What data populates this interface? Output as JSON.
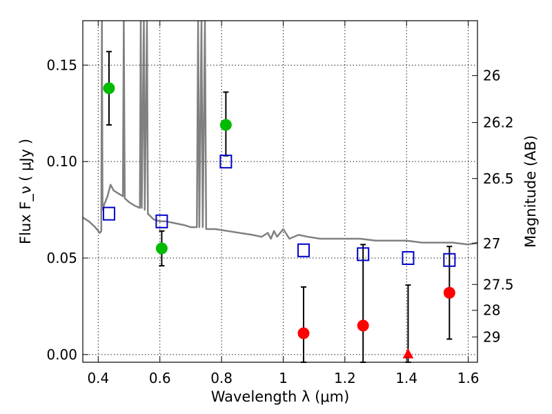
{
  "chart_data": {
    "type": "scatter",
    "title": "",
    "xlabel": "Wavelength  λ (μm)",
    "ylabel": "Flux  F_ν  ( μJy )",
    "y2label": "Magnitude (AB)",
    "xlim": [
      0.35,
      1.63
    ],
    "ylim": [
      -0.004,
      0.173
    ],
    "grid": true,
    "x_ticks": [
      {
        "value": 0.4,
        "label": "0.4"
      },
      {
        "value": 0.6,
        "label": "0.6"
      },
      {
        "value": 0.8,
        "label": "0.8"
      },
      {
        "value": 1.0,
        "label": "1"
      },
      {
        "value": 1.2,
        "label": "1.2"
      },
      {
        "value": 1.4,
        "label": "1.4"
      },
      {
        "value": 1.6,
        "label": "1.6"
      }
    ],
    "y_ticks": [
      {
        "value": 0.0,
        "label": "0.00"
      },
      {
        "value": 0.05,
        "label": "0.05"
      },
      {
        "value": 0.1,
        "label": "0.10"
      },
      {
        "value": 0.15,
        "label": "0.15"
      }
    ],
    "y2_ticks": [
      {
        "mag": 26,
        "label": "26"
      },
      {
        "mag": 26.2,
        "label": "26.2"
      },
      {
        "mag": 26.5,
        "label": "26.5"
      },
      {
        "mag": 27,
        "label": "27"
      },
      {
        "mag": 27.5,
        "label": "27.5"
      },
      {
        "mag": 28,
        "label": "28"
      },
      {
        "mag": 29,
        "label": "29"
      }
    ],
    "colors": {
      "detections": "#00bb00",
      "upper_limits": "#ff0000",
      "model": "#808080",
      "model_photometry": "#0000cc",
      "errorbars": "#000000"
    },
    "series": [
      {
        "marker": "circle",
        "color": "#00bb00",
        "points": [
          {
            "x": 0.435,
            "y": 0.138,
            "ylo": 0.119,
            "yhi": 0.157
          },
          {
            "x": 0.606,
            "y": 0.055,
            "ylo": 0.046,
            "yhi": 0.064
          },
          {
            "x": 0.814,
            "y": 0.119,
            "ylo": 0.103,
            "yhi": 0.136
          }
        ]
      },
      {
        "marker": "circle",
        "color": "#ff0000",
        "points": [
          {
            "x": 1.066,
            "y": 0.011,
            "ylo": -0.004,
            "yhi": 0.035
          },
          {
            "x": 1.259,
            "y": 0.015,
            "ylo": -0.004,
            "yhi": 0.057
          },
          {
            "x": 1.539,
            "y": 0.032,
            "ylo": 0.008,
            "yhi": 0.056
          }
        ]
      },
      {
        "marker": "triangle",
        "color": "#ff0000",
        "points": [
          {
            "x": 1.405,
            "y": 0.0,
            "ylo": -0.004,
            "yhi": 0.036
          }
        ]
      },
      {
        "marker": "open-square",
        "color": "#0000cc",
        "points": [
          {
            "x": 0.435,
            "y": 0.073
          },
          {
            "x": 0.606,
            "y": 0.069
          },
          {
            "x": 0.814,
            "y": 0.1
          },
          {
            "x": 1.066,
            "y": 0.054
          },
          {
            "x": 1.259,
            "y": 0.052
          },
          {
            "x": 1.405,
            "y": 0.05
          },
          {
            "x": 1.539,
            "y": 0.049
          }
        ]
      },
      {
        "marker": "line",
        "color": "#808080",
        "points": [
          {
            "x": 0.35,
            "y": 0.071
          },
          {
            "x": 0.37,
            "y": 0.069
          },
          {
            "x": 0.39,
            "y": 0.066
          },
          {
            "x": 0.405,
            "y": 0.063
          },
          {
            "x": 0.41,
            "y": 0.064
          },
          {
            "x": 0.412,
            "y": 0.173
          },
          {
            "x": 0.414,
            "y": 0.075
          },
          {
            "x": 0.42,
            "y": 0.078
          },
          {
            "x": 0.43,
            "y": 0.082
          },
          {
            "x": 0.44,
            "y": 0.088
          },
          {
            "x": 0.45,
            "y": 0.085
          },
          {
            "x": 0.46,
            "y": 0.084
          },
          {
            "x": 0.47,
            "y": 0.083
          },
          {
            "x": 0.48,
            "y": 0.082
          },
          {
            "x": 0.483,
            "y": 0.173
          },
          {
            "x": 0.486,
            "y": 0.081
          },
          {
            "x": 0.5,
            "y": 0.079
          },
          {
            "x": 0.52,
            "y": 0.077
          },
          {
            "x": 0.535,
            "y": 0.076
          },
          {
            "x": 0.538,
            "y": 0.173
          },
          {
            "x": 0.541,
            "y": 0.076
          },
          {
            "x": 0.548,
            "y": 0.173
          },
          {
            "x": 0.551,
            "y": 0.075
          },
          {
            "x": 0.558,
            "y": 0.173
          },
          {
            "x": 0.561,
            "y": 0.073
          },
          {
            "x": 0.58,
            "y": 0.07
          },
          {
            "x": 0.6,
            "y": 0.069
          },
          {
            "x": 0.62,
            "y": 0.069
          },
          {
            "x": 0.65,
            "y": 0.068
          },
          {
            "x": 0.68,
            "y": 0.067
          },
          {
            "x": 0.7,
            "y": 0.066
          },
          {
            "x": 0.72,
            "y": 0.066
          },
          {
            "x": 0.724,
            "y": 0.173
          },
          {
            "x": 0.728,
            "y": 0.066
          },
          {
            "x": 0.735,
            "y": 0.173
          },
          {
            "x": 0.739,
            "y": 0.066
          },
          {
            "x": 0.746,
            "y": 0.173
          },
          {
            "x": 0.75,
            "y": 0.065
          },
          {
            "x": 0.78,
            "y": 0.065
          },
          {
            "x": 0.82,
            "y": 0.064
          },
          {
            "x": 0.86,
            "y": 0.063
          },
          {
            "x": 0.9,
            "y": 0.062
          },
          {
            "x": 0.93,
            "y": 0.061
          },
          {
            "x": 0.95,
            "y": 0.063
          },
          {
            "x": 0.96,
            "y": 0.06
          },
          {
            "x": 0.97,
            "y": 0.064
          },
          {
            "x": 0.98,
            "y": 0.061
          },
          {
            "x": 1.0,
            "y": 0.065
          },
          {
            "x": 1.02,
            "y": 0.06
          },
          {
            "x": 1.05,
            "y": 0.062
          },
          {
            "x": 1.08,
            "y": 0.061
          },
          {
            "x": 1.12,
            "y": 0.06
          },
          {
            "x": 1.16,
            "y": 0.06
          },
          {
            "x": 1.2,
            "y": 0.06
          },
          {
            "x": 1.25,
            "y": 0.06
          },
          {
            "x": 1.3,
            "y": 0.059
          },
          {
            "x": 1.35,
            "y": 0.059
          },
          {
            "x": 1.4,
            "y": 0.059
          },
          {
            "x": 1.45,
            "y": 0.058
          },
          {
            "x": 1.5,
            "y": 0.058
          },
          {
            "x": 1.55,
            "y": 0.058
          },
          {
            "x": 1.6,
            "y": 0.057
          },
          {
            "x": 1.63,
            "y": 0.058
          }
        ]
      }
    ]
  }
}
